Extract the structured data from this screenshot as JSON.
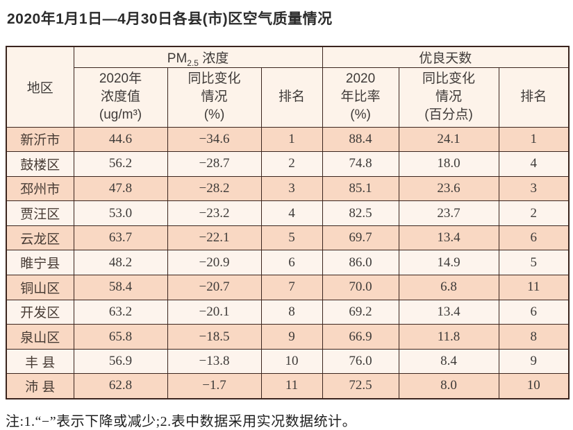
{
  "title": "2020年1月1日—4月30日各县(市)区空气质量情况",
  "colors": {
    "row_dark": "#f9d8c3",
    "row_light": "#fdf4ed",
    "header_bg": "#fdf3ea",
    "grid_border": "#3a241d",
    "page_bg": "#ffffff"
  },
  "table": {
    "region_header": "地区",
    "pm25_group": {
      "prefix": "PM",
      "sub": "2.5",
      "suffix": " 浓度"
    },
    "good_days_group": "优良天数",
    "sub_headers": {
      "pm_value": [
        "2020年",
        "浓度值",
        "(ug/m³)"
      ],
      "pm_change": [
        "同比变化",
        "情况",
        "(%)"
      ],
      "pm_rank": "排名",
      "days_rate": [
        "2020",
        "年比率",
        "(%)"
      ],
      "days_change": [
        "同比变化",
        "情况",
        "(百分点)"
      ],
      "days_rank": "排名"
    },
    "rows": [
      {
        "region": "新沂市",
        "pm_value": "44.6",
        "pm_change": "−34.6",
        "pm_rank": "1",
        "rate": "88.4",
        "rate_change": "24.1",
        "rank": "1"
      },
      {
        "region": "鼓楼区",
        "pm_value": "56.2",
        "pm_change": "−28.7",
        "pm_rank": "2",
        "rate": "74.8",
        "rate_change": "18.0",
        "rank": "4"
      },
      {
        "region": "邳州市",
        "pm_value": "47.8",
        "pm_change": "−28.2",
        "pm_rank": "3",
        "rate": "85.1",
        "rate_change": "23.6",
        "rank": "3"
      },
      {
        "region": "贾汪区",
        "pm_value": "53.0",
        "pm_change": "−23.2",
        "pm_rank": "4",
        "rate": "82.5",
        "rate_change": "23.7",
        "rank": "2"
      },
      {
        "region": "云龙区",
        "pm_value": "63.7",
        "pm_change": "−22.1",
        "pm_rank": "5",
        "rate": "69.7",
        "rate_change": "13.4",
        "rank": "6"
      },
      {
        "region": "睢宁县",
        "pm_value": "48.2",
        "pm_change": "−20.9",
        "pm_rank": "6",
        "rate": "86.0",
        "rate_change": "14.9",
        "rank": "5"
      },
      {
        "region": "铜山区",
        "pm_value": "58.4",
        "pm_change": "−20.7",
        "pm_rank": "7",
        "rate": "70.0",
        "rate_change": "6.8",
        "rank": "11"
      },
      {
        "region": "开发区",
        "pm_value": "63.2",
        "pm_change": "−20.1",
        "pm_rank": "8",
        "rate": "69.2",
        "rate_change": "13.4",
        "rank": "6"
      },
      {
        "region": "泉山区",
        "pm_value": "65.8",
        "pm_change": "−18.5",
        "pm_rank": "9",
        "rate": "66.9",
        "rate_change": "11.8",
        "rank": "8"
      },
      {
        "region": "丰 县",
        "pm_value": "56.9",
        "pm_change": "−13.8",
        "pm_rank": "10",
        "rate": "76.0",
        "rate_change": "8.4",
        "rank": "9"
      },
      {
        "region": "沛 县",
        "pm_value": "62.8",
        "pm_change": "−1.7",
        "pm_rank": "11",
        "rate": "72.5",
        "rate_change": "8.0",
        "rank": "10"
      }
    ]
  },
  "footnote": "注:1.“−”表示下降或减少;2.表中数据采用实况数据统计。"
}
